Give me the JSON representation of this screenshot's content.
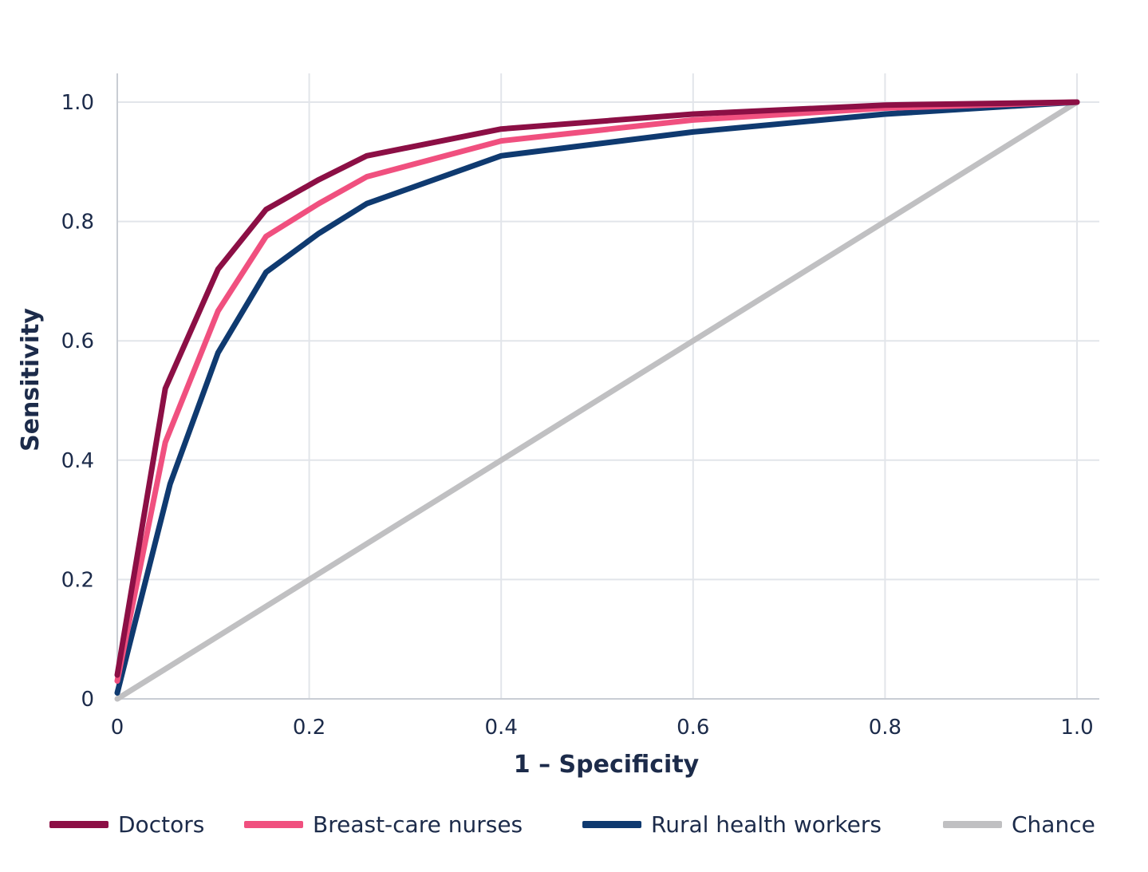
{
  "chart_data": {
    "type": "line",
    "xlabel": "1 – Specificity",
    "ylabel": "Sensitivity",
    "xlim": [
      0,
      1
    ],
    "ylim": [
      0,
      1
    ],
    "x_ticks": [
      "0",
      "0.2",
      "0.4",
      "0.6",
      "0.8",
      "1.0"
    ],
    "y_ticks": [
      "0",
      "0.2",
      "0.4",
      "0.6",
      "0.8",
      "1.0"
    ],
    "grid": true,
    "legend_position": "bottom",
    "series": [
      {
        "name": "Doctors",
        "color": "#8c0f45",
        "x": [
          0,
          0.05,
          0.105,
          0.155,
          0.21,
          0.26,
          0.4,
          0.6,
          0.8,
          1.0
        ],
        "y": [
          0.04,
          0.52,
          0.72,
          0.82,
          0.87,
          0.91,
          0.955,
          0.98,
          0.995,
          1.0
        ]
      },
      {
        "name": "Breast-care nurses",
        "color": "#f0507f",
        "x": [
          0,
          0.05,
          0.105,
          0.155,
          0.21,
          0.26,
          0.4,
          0.6,
          0.8,
          1.0
        ],
        "y": [
          0.03,
          0.43,
          0.65,
          0.775,
          0.83,
          0.875,
          0.935,
          0.97,
          0.99,
          1.0
        ]
      },
      {
        "name": "Rural health workers",
        "color": "#0f3a70",
        "x": [
          0,
          0.055,
          0.105,
          0.155,
          0.21,
          0.26,
          0.4,
          0.6,
          0.8,
          1.0
        ],
        "y": [
          0.01,
          0.36,
          0.58,
          0.715,
          0.78,
          0.83,
          0.91,
          0.95,
          0.98,
          1.0
        ]
      },
      {
        "name": "Chance",
        "color": "#c0c0c2",
        "x": [
          0,
          1.0
        ],
        "y": [
          0,
          1.0
        ]
      }
    ]
  }
}
